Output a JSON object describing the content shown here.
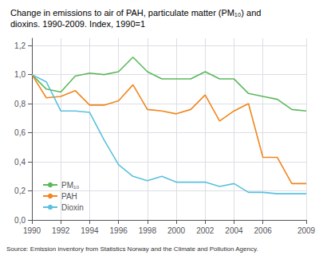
{
  "chart_data": {
    "type": "line",
    "title": "Change in emissions to air of PAH, particulate matter (PM₁₀) and\ndioxins. 1990-2009. Index, 1990=1",
    "annotations": [
      "Source: Emission inventory from Statistics Norway and the Climate and Pollution Agency."
    ],
    "x": [
      1990,
      1991,
      1992,
      1993,
      1994,
      1995,
      1996,
      1997,
      1998,
      1999,
      2000,
      2001,
      2002,
      2003,
      2004,
      2005,
      2006,
      2007,
      2008,
      2009
    ],
    "series": [
      {
        "name": "PM₁₀",
        "color": "#5cb85c",
        "values": [
          1.0,
          0.9,
          0.88,
          0.99,
          1.01,
          1.0,
          1.02,
          1.12,
          1.02,
          0.97,
          0.97,
          0.97,
          1.02,
          0.97,
          0.97,
          0.87,
          0.85,
          0.83,
          0.76,
          0.75
        ]
      },
      {
        "name": "PAH",
        "color": "#f0861e",
        "values": [
          1.0,
          0.84,
          0.85,
          0.89,
          0.79,
          0.79,
          0.82,
          0.93,
          0.76,
          0.75,
          0.73,
          0.76,
          0.86,
          0.68,
          0.75,
          0.8,
          0.43,
          0.43,
          0.25,
          0.25
        ]
      },
      {
        "name": "Dioxin",
        "color": "#5bc0de",
        "values": [
          1.0,
          0.95,
          0.75,
          0.75,
          0.74,
          0.55,
          0.38,
          0.3,
          0.27,
          0.3,
          0.26,
          0.26,
          0.26,
          0.23,
          0.25,
          0.19,
          0.19,
          0.18,
          0.18,
          0.18
        ]
      }
    ],
    "xlim": [
      1990,
      2009
    ],
    "xticks": [
      1990,
      1992,
      1994,
      1996,
      1998,
      2000,
      2002,
      2004,
      2006,
      2009
    ],
    "ylim": [
      0.0,
      1.25
    ],
    "yticks": [
      {
        "value": 0.0,
        "label": "0,0"
      },
      {
        "value": 0.2,
        "label": "0,2"
      },
      {
        "value": 0.4,
        "label": "0,4"
      },
      {
        "value": 0.6,
        "label": "0,6"
      },
      {
        "value": 0.8,
        "label": "0,8"
      },
      {
        "value": 1.0,
        "label": "1,0"
      },
      {
        "value": 1.2,
        "label": "1,2"
      }
    ],
    "grid": true,
    "legend": "lower left"
  }
}
